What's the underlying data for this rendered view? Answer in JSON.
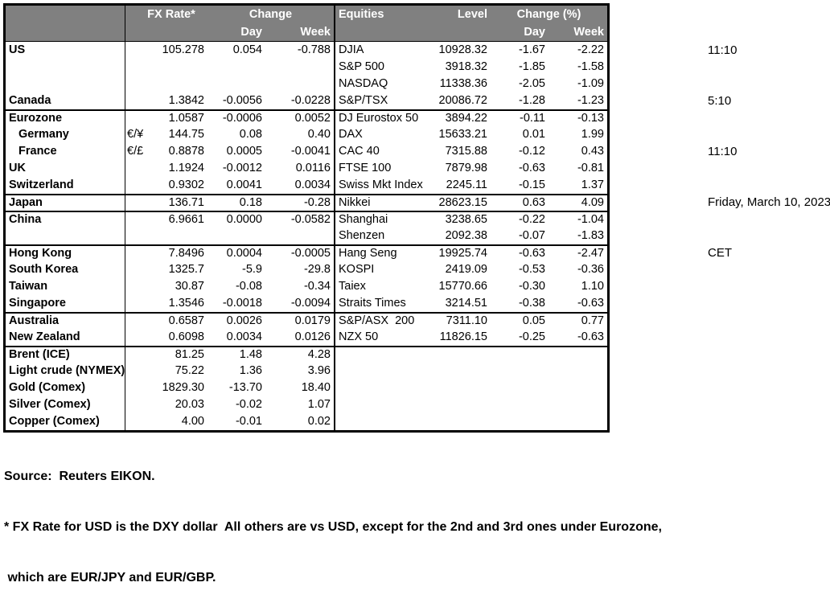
{
  "colors": {
    "header_bg": "#808080",
    "header_text": "#ffffff",
    "border": "#000000"
  },
  "fx_header": {
    "rate": "FX Rate*",
    "change": "Change",
    "day": "Day",
    "week": "Week"
  },
  "eq_header": {
    "title": "Equities",
    "level": "Level",
    "change": "Change (%)",
    "day": "Day",
    "week": "Week"
  },
  "rows": [
    {
      "divider": false,
      "fx": {
        "label": "US",
        "indent": false,
        "pair": "",
        "rate": "105.278",
        "day": "0.054",
        "week": "-0.788"
      },
      "eq": {
        "label": "DJIA",
        "level": "10928.32",
        "day": "-1.67",
        "week": "-2.22"
      }
    },
    {
      "divider": false,
      "fx": {
        "label": "",
        "indent": false,
        "pair": "",
        "rate": "",
        "day": "",
        "week": ""
      },
      "eq": {
        "label": "S&P 500",
        "level": "3918.32",
        "day": "-1.85",
        "week": "-1.58"
      }
    },
    {
      "divider": false,
      "fx": {
        "label": "",
        "indent": false,
        "pair": "",
        "rate": "",
        "day": "",
        "week": ""
      },
      "eq": {
        "label": "NASDAQ",
        "level": "11338.36",
        "day": "-2.05",
        "week": "-1.09"
      }
    },
    {
      "divider": false,
      "fx": {
        "label": "Canada",
        "indent": false,
        "pair": "",
        "rate": "1.3842",
        "day": "-0.0056",
        "week": "-0.0228"
      },
      "eq": {
        "label": "S&P/TSX",
        "level": "20086.72",
        "day": "-1.28",
        "week": "-1.23"
      }
    },
    {
      "divider": true,
      "fx": {
        "label": "Eurozone",
        "indent": false,
        "pair": "",
        "rate": "1.0587",
        "day": "-0.0006",
        "week": "0.0052"
      },
      "eq": {
        "label": "DJ Eurostox 50",
        "level": "3894.22",
        "day": "-0.11",
        "week": "-0.13"
      }
    },
    {
      "divider": false,
      "fx": {
        "label": "Germany",
        "indent": true,
        "pair": "€/¥",
        "rate": "144.75",
        "day": "0.08",
        "week": "0.40"
      },
      "eq": {
        "label": "DAX",
        "level": "15633.21",
        "day": "0.01",
        "week": "1.99"
      }
    },
    {
      "divider": false,
      "fx": {
        "label": "France",
        "indent": true,
        "pair": "€/£",
        "rate": "0.8878",
        "day": "0.0005",
        "week": "-0.0041"
      },
      "eq": {
        "label": "CAC 40",
        "level": "7315.88",
        "day": "-0.12",
        "week": "0.43"
      }
    },
    {
      "divider": false,
      "fx": {
        "label": "UK",
        "indent": false,
        "pair": "",
        "rate": "1.1924",
        "day": "-0.0012",
        "week": "0.0116"
      },
      "eq": {
        "label": "FTSE 100",
        "level": "7879.98",
        "day": "-0.63",
        "week": "-0.81"
      }
    },
    {
      "divider": false,
      "fx": {
        "label": "Switzerland",
        "indent": false,
        "pair": "",
        "rate": "0.9302",
        "day": "0.0041",
        "week": "0.0034"
      },
      "eq": {
        "label": "Swiss Mkt Index",
        "level": "2245.11",
        "day": "-0.15",
        "week": "1.37"
      }
    },
    {
      "divider": true,
      "fx": {
        "label": "Japan",
        "indent": false,
        "pair": "",
        "rate": "136.71",
        "day": "0.18",
        "week": "-0.28"
      },
      "eq": {
        "label": "Nikkei",
        "level": "28623.15",
        "day": "0.63",
        "week": "4.09"
      }
    },
    {
      "divider": true,
      "fx": {
        "label": "China",
        "indent": false,
        "pair": "",
        "rate": "6.9661",
        "day": "0.0000",
        "week": "-0.0582"
      },
      "eq": {
        "label": "Shanghai",
        "level": "3238.65",
        "day": "-0.22",
        "week": "-1.04"
      }
    },
    {
      "divider": false,
      "fx": {
        "label": "",
        "indent": false,
        "pair": "",
        "rate": "",
        "day": "",
        "week": ""
      },
      "eq": {
        "label": "Shenzen",
        "level": "2092.38",
        "day": "-0.07",
        "week": "-1.83"
      }
    },
    {
      "divider": true,
      "fx": {
        "label": "Hong Kong",
        "indent": false,
        "pair": "",
        "rate": "7.8496",
        "day": "0.0004",
        "week": "-0.0005"
      },
      "eq": {
        "label": "Hang Seng",
        "level": "19925.74",
        "day": "-0.63",
        "week": "-2.47"
      }
    },
    {
      "divider": false,
      "fx": {
        "label": "South Korea",
        "indent": false,
        "pair": "",
        "rate": "1325.7",
        "day": "-5.9",
        "week": "-29.8"
      },
      "eq": {
        "label": "KOSPI",
        "level": "2419.09",
        "day": "-0.53",
        "week": "-0.36"
      }
    },
    {
      "divider": false,
      "fx": {
        "label": "Taiwan",
        "indent": false,
        "pair": "",
        "rate": "30.87",
        "day": "-0.08",
        "week": "-0.34"
      },
      "eq": {
        "label": "Taiex",
        "level": "15770.66",
        "day": "-0.30",
        "week": "1.10"
      }
    },
    {
      "divider": false,
      "fx": {
        "label": "Singapore",
        "indent": false,
        "pair": "",
        "rate": "1.3546",
        "day": "-0.0018",
        "week": "-0.0094"
      },
      "eq": {
        "label": "Straits Times",
        "level": "3214.51",
        "day": "-0.38",
        "week": "-0.63"
      }
    },
    {
      "divider": true,
      "fx": {
        "label": "Australia",
        "indent": false,
        "pair": "",
        "rate": "0.6587",
        "day": "0.0026",
        "week": "0.0179"
      },
      "eq": {
        "label": "S&P/ASX  200",
        "level": "7311.10",
        "day": "0.05",
        "week": "0.77"
      }
    },
    {
      "divider": false,
      "fx": {
        "label": "New Zealand",
        "indent": false,
        "pair": "",
        "rate": "0.6098",
        "day": "0.0034",
        "week": "0.0126"
      },
      "eq": {
        "label": "NZX 50",
        "level": "11826.15",
        "day": "-0.25",
        "week": "-0.63"
      }
    },
    {
      "divider": true,
      "fx": {
        "label": "Brent (ICE)",
        "indent": false,
        "pair": "",
        "rate": "81.25",
        "day": "1.48",
        "week": "4.28"
      },
      "eq": {
        "label": "",
        "level": "",
        "day": "",
        "week": ""
      }
    },
    {
      "divider": false,
      "fx": {
        "label": "Light crude (NYMEX)",
        "indent": false,
        "pair": "",
        "rate": "75.22",
        "day": "1.36",
        "week": "3.96"
      },
      "eq": {
        "label": "",
        "level": "",
        "day": "",
        "week": ""
      }
    },
    {
      "divider": false,
      "fx": {
        "label": "Gold (Comex)",
        "indent": false,
        "pair": "",
        "rate": "1829.30",
        "day": "-13.70",
        "week": "18.40"
      },
      "eq": {
        "label": "",
        "level": "",
        "day": "",
        "week": ""
      }
    },
    {
      "divider": false,
      "fx": {
        "label": "Silver (Comex)",
        "indent": false,
        "pair": "",
        "rate": "20.03",
        "day": "-0.02",
        "week": "1.07"
      },
      "eq": {
        "label": "",
        "level": "",
        "day": "",
        "week": ""
      }
    },
    {
      "divider": false,
      "fx": {
        "label": "Copper (Comex)",
        "indent": false,
        "pair": "",
        "rate": "4.00",
        "day": "-0.01",
        "week": "0.02"
      },
      "eq": {
        "label": "",
        "level": "",
        "day": "",
        "week": ""
      }
    }
  ],
  "timestamp_panel": {
    "times": [
      "11:10",
      "5:10",
      "11:10"
    ],
    "date": "Friday, March 10, 2023",
    "timezone": "CET"
  },
  "footer": {
    "source": "Source:  Reuters EIKON.",
    "note1": "* FX Rate for USD is the DXY dollar  All others are vs USD, except for the 2nd and 3rd ones under Eurozone,",
    "note2": " which are EUR/JPY and EUR/GBP."
  }
}
